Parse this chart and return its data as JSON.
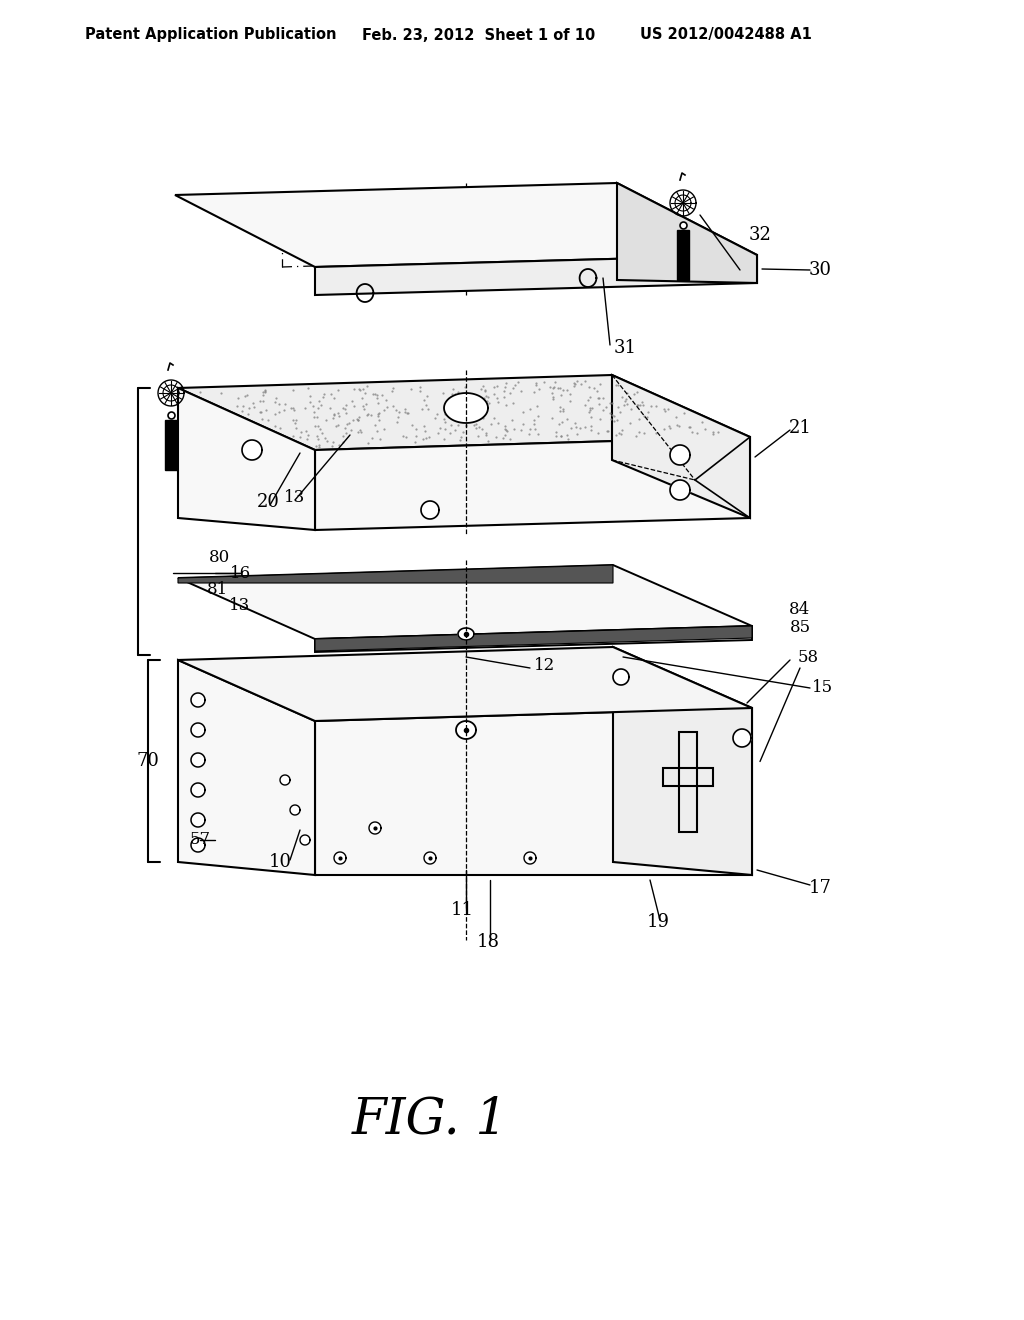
{
  "title_left": "Patent Application Publication",
  "title_center": "Feb. 23, 2012  Sheet 1 of 10",
  "title_right": "US 2012/0042488 A1",
  "fig_label": "FIG. 1",
  "bg_color": "#ffffff",
  "face_white": "#f8f8f8",
  "face_light": "#eeeeee",
  "face_mid": "#e0e0e0",
  "face_dark": "#cccccc",
  "stipple_color": "#bbbbbb",
  "edge_strip": "#555555",
  "line_color": "#000000",
  "header_fontsize": 10.5,
  "label_fontsize": 13,
  "fig_fontsize": 36
}
